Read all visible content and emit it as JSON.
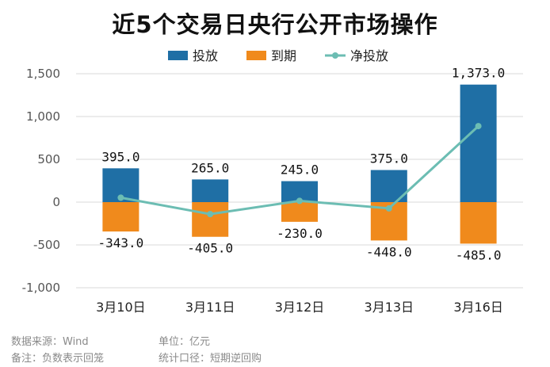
{
  "chart_data": {
    "type": "bar",
    "title": "近5个交易日央行公开市场操作",
    "categories": [
      "3月10日",
      "3月11日",
      "3月12日",
      "3月13日",
      "3月16日"
    ],
    "series": [
      {
        "name": "投放",
        "type": "bar",
        "color": "#1f6fa5",
        "values": [
          395.0,
          265.0,
          245.0,
          375.0,
          1373.0
        ],
        "labels": [
          "395.0",
          "265.0",
          "245.0",
          "375.0",
          "1,373.0"
        ]
      },
      {
        "name": "到期",
        "type": "bar",
        "color": "#f08a1c",
        "values": [
          -343.0,
          -405.0,
          -230.0,
          -448.0,
          -485.0
        ],
        "labels": [
          "-343.0",
          "-405.0",
          "-230.0",
          "-448.0",
          "-485.0"
        ]
      },
      {
        "name": "净投放",
        "type": "line",
        "color": "#6cbdb3",
        "values": [
          52.0,
          -140.0,
          15.0,
          -73.0,
          888.0
        ]
      }
    ],
    "ylim": [
      -1000,
      1500
    ],
    "yticks": [
      1500,
      1000,
      500,
      0,
      -500,
      -1000
    ],
    "ytick_labels": [
      "1,500",
      "1,000",
      "500",
      "0",
      "-500",
      "-1,000"
    ],
    "grid": true,
    "legend": "top-center"
  },
  "footer": {
    "source": "数据来源：Wind",
    "unit": "单位：亿元",
    "note": "备注：负数表示回笼",
    "caliber": "统计口径：短期逆回购"
  }
}
